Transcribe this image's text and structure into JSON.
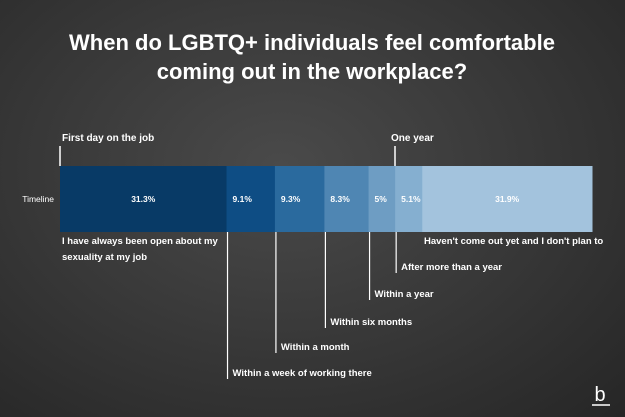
{
  "chart_data": {
    "type": "bar",
    "title_line1": "When do LGBTQ+ individuals feel comfortable",
    "title_line2": "coming out in the workplace?",
    "row_label": "Timeline",
    "marker_start": "First day on the job",
    "marker_one_year": "One year",
    "segments": [
      {
        "label_line1": "I have always been open about my",
        "label_line2": "sexuality at my job",
        "value": 31.3,
        "value_label": "31.3%",
        "color": "#083a66"
      },
      {
        "label_line1": "Within a week of working there",
        "label_line2": "",
        "value": 9.1,
        "value_label": "9.1%",
        "color": "#0e4d84"
      },
      {
        "label_line1": "Within a month",
        "label_line2": "",
        "value": 9.3,
        "value_label": "9.3%",
        "color": "#2a6a9e"
      },
      {
        "label_line1": "Within six months",
        "label_line2": "",
        "value": 8.3,
        "value_label": "8.3%",
        "color": "#4f86b3"
      },
      {
        "label_line1": "Within a year",
        "label_line2": "",
        "value": 5,
        "value_label": "5%",
        "color": "#6e9dc3"
      },
      {
        "label_line1": "After more than a year",
        "label_line2": "",
        "value": 5.1,
        "value_label": "5.1%",
        "color": "#85afd0"
      },
      {
        "label_line1": "Haven't come out yet and I don't plan to",
        "label_line2": "",
        "value": 31.9,
        "value_label": "31.9%",
        "color": "#a3c3dd"
      }
    ]
  },
  "brand": {
    "logo_glyph": "b"
  }
}
